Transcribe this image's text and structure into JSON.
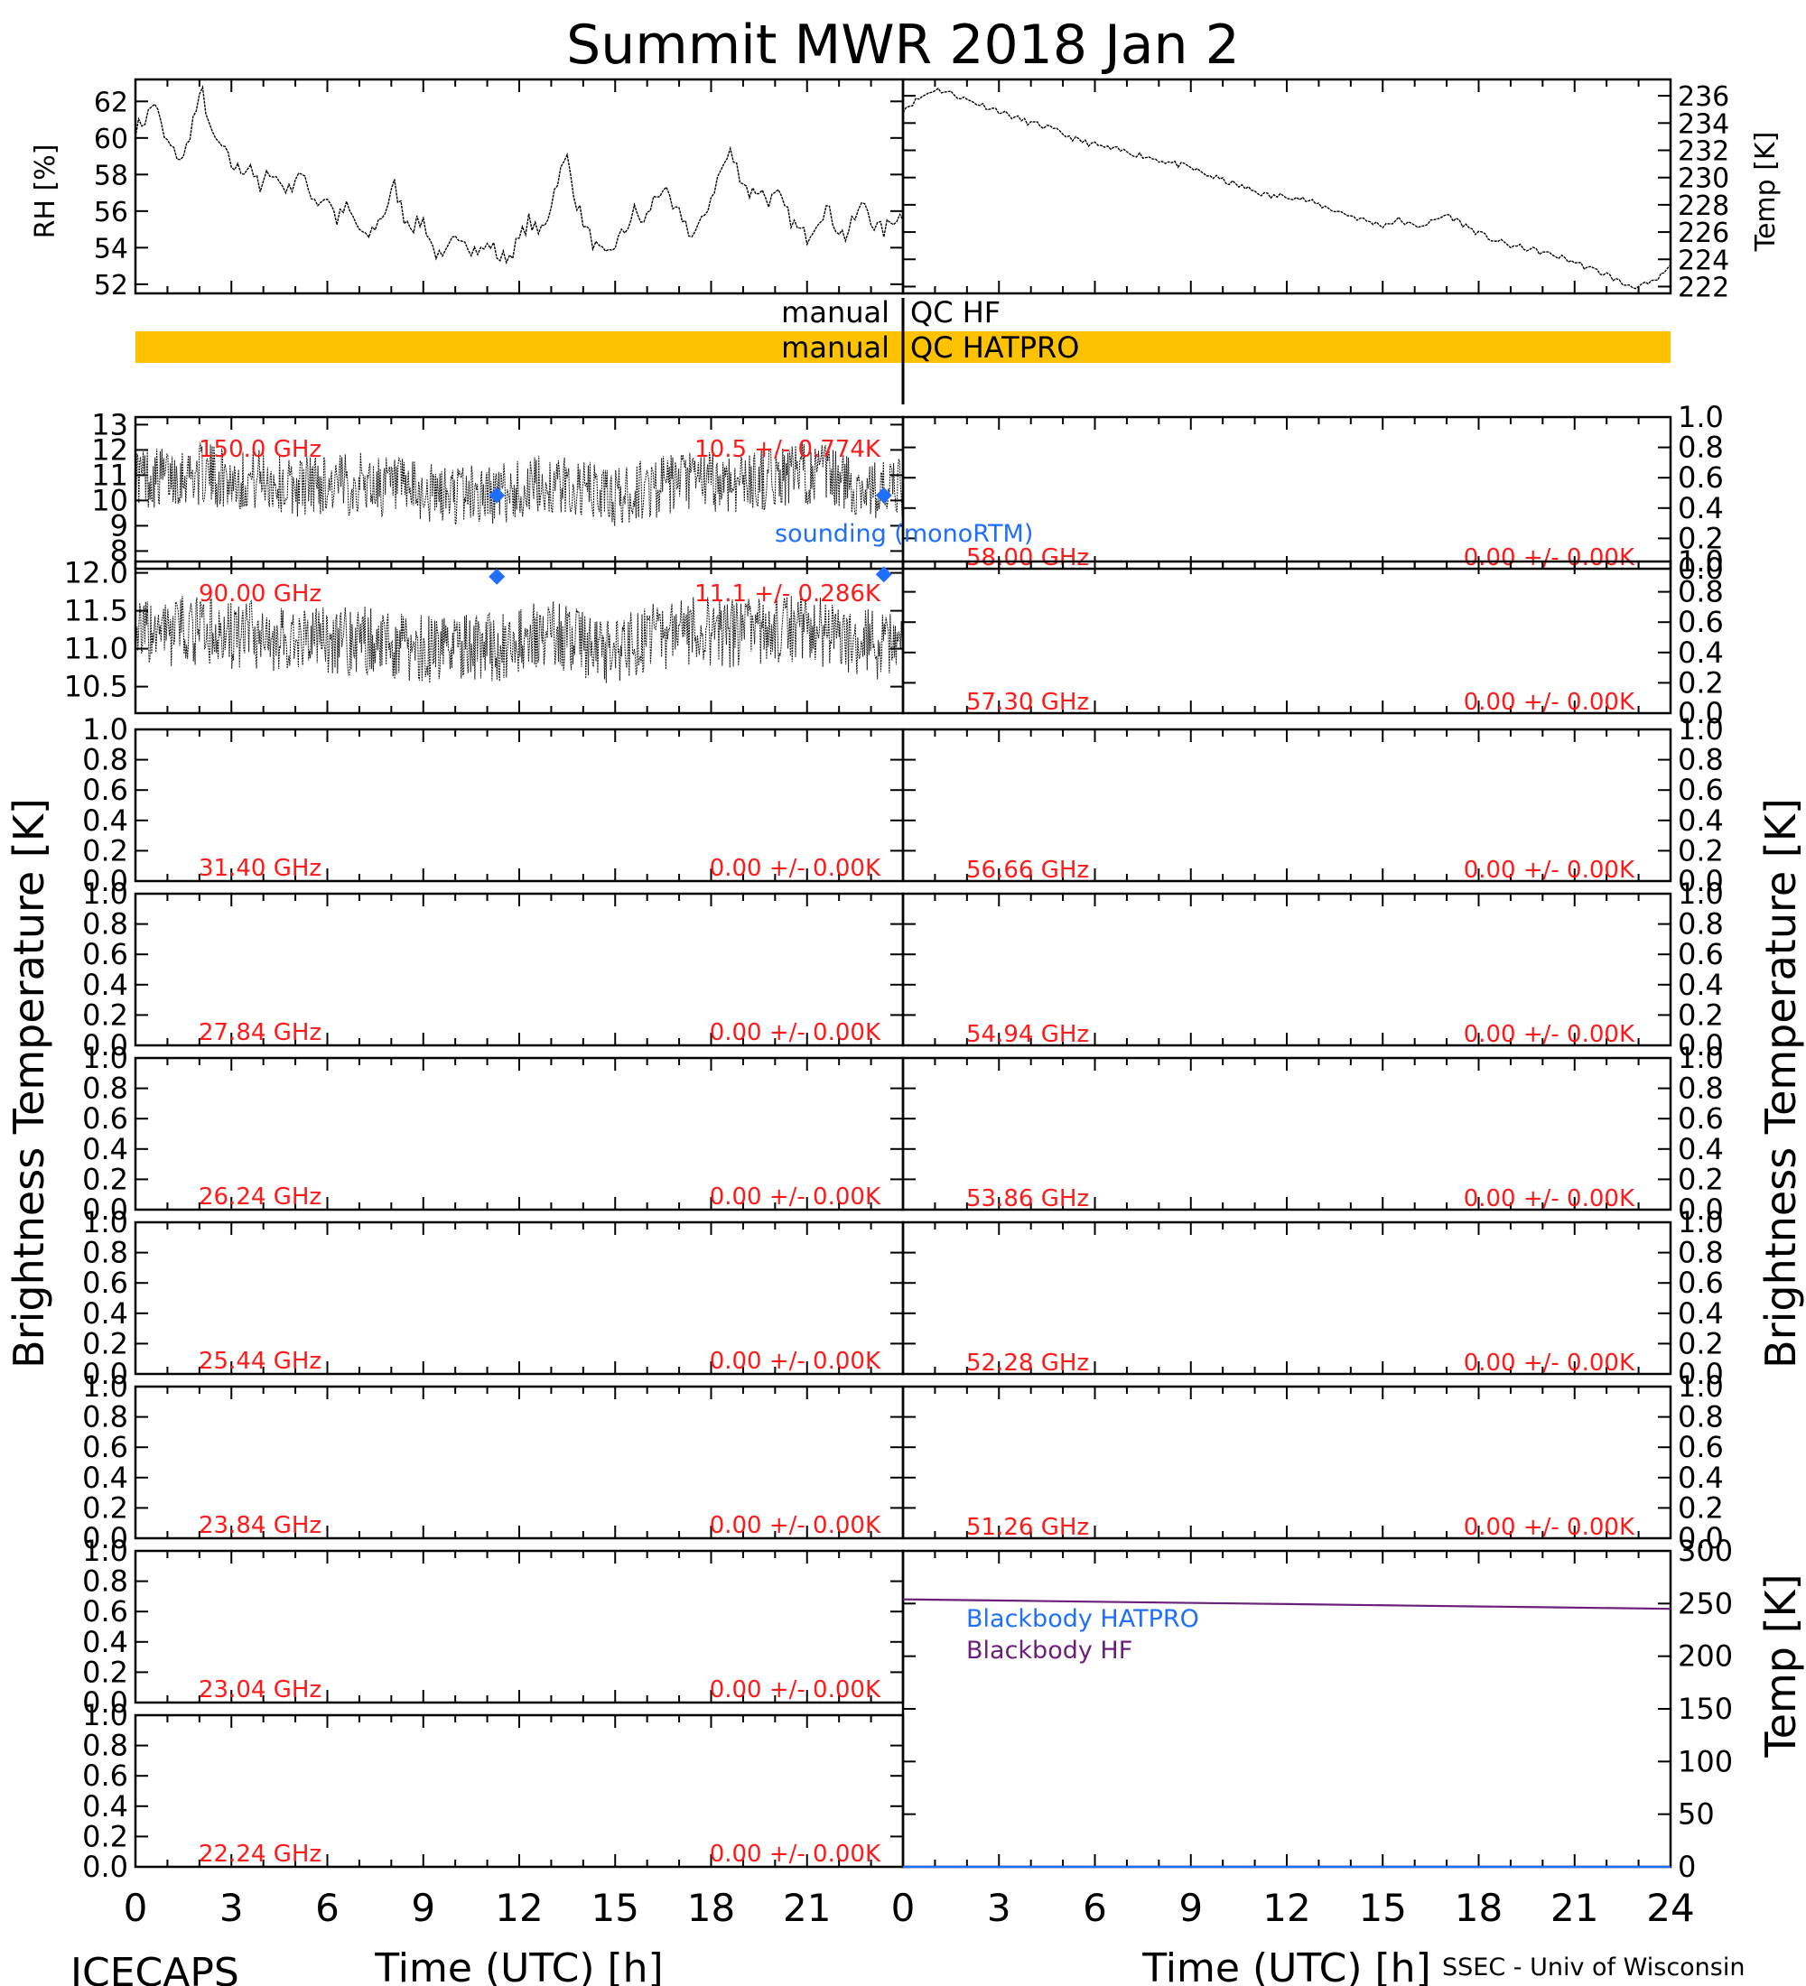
{
  "title": "Summit MWR 2018 Jan  2",
  "footer": {
    "left": "ICECAPS",
    "right": "SSEC - Univ of Wisconsin"
  },
  "colors": {
    "ink": "#000000",
    "label": "#ff1a1a",
    "sounding": "#1f6fff",
    "qc_bar": "#fcc200",
    "bb_hatpro": "#1f6fff",
    "bb_hf": "#6b1f7a"
  },
  "qc": {
    "hf_left": "manual",
    "hf_right": "QC HF",
    "hatpro_left": "manual",
    "hatpro_right": "QC HATPRO"
  },
  "legend": {
    "sounding": "sounding (monoRTM)",
    "bb_hatpro": "Blackbody HATPRO",
    "bb_hf": "Blackbody HF"
  },
  "axes": {
    "left_bt": "Brightness Temperature [K]",
    "right_bt": "Brightness Temperature [K]",
    "rh": "RH [%]",
    "temp_top": "Temp [K]",
    "temp_bb": "Temp [K]",
    "xlabel_left": "Time (UTC) [h]",
    "xlabel_right": "Time (UTC) [h]",
    "xticks": [
      "0",
      "3",
      "6",
      "9",
      "12",
      "15",
      "18",
      "21",
      "24"
    ],
    "xticks_left_shown": [
      "0",
      "3",
      "6",
      "9",
      "12",
      "15",
      "18",
      "21"
    ]
  },
  "chart_data": [
    {
      "id": "rh",
      "type": "line",
      "ylabel": "RH [%]",
      "ylim": [
        51.5,
        63.2
      ],
      "yticks": [
        "52",
        "54",
        "56",
        "58",
        "60",
        "62"
      ],
      "xlim": [
        0,
        24
      ],
      "x": [
        0,
        0.3,
        0.6,
        0.9,
        1.2,
        1.5,
        1.8,
        2.1,
        2.4,
        2.7,
        3.0,
        3.3,
        3.6,
        3.9,
        4.2,
        4.5,
        4.8,
        5.1,
        5.4,
        5.7,
        6.0,
        6.3,
        6.6,
        6.9,
        7.2,
        7.5,
        7.8,
        8.1,
        8.4,
        8.7,
        9.0,
        9.3,
        9.6,
        9.9,
        10.2,
        10.5,
        10.8,
        11.1,
        11.4,
        11.7,
        12.0,
        12.3,
        12.6,
        12.9,
        13.2,
        13.5,
        13.8,
        14.1,
        14.4,
        14.7,
        15.0,
        15.3,
        15.6,
        15.9,
        16.2,
        16.5,
        16.8,
        17.1,
        17.4,
        17.7,
        18.0,
        18.3,
        18.6,
        18.9,
        19.2,
        19.5,
        19.8,
        20.1,
        20.4,
        20.7,
        21.0,
        21.3,
        21.6,
        21.9,
        22.2,
        22.5,
        22.8,
        23.1,
        23.4,
        23.7,
        24.0
      ],
      "values": [
        60.5,
        61.0,
        62.0,
        60.0,
        59.2,
        58.8,
        61.0,
        62.5,
        60.0,
        59.5,
        58.5,
        58.2,
        58.6,
        57.0,
        58.3,
        57.6,
        57.1,
        58.2,
        57.2,
        56.5,
        56.8,
        55.5,
        56.2,
        55.3,
        54.4,
        55.2,
        56.0,
        57.4,
        55.7,
        55.2,
        55.5,
        54.0,
        53.2,
        54.2,
        54.8,
        54.0,
        53.8,
        54.2,
        53.4,
        53.6,
        54.4,
        55.5,
        54.7,
        55.8,
        57.8,
        58.9,
        56.4,
        55.0,
        54.0,
        53.4,
        54.2,
        54.9,
        56.0,
        55.3,
        56.6,
        57.3,
        56.0,
        55.7,
        54.6,
        55.3,
        56.8,
        58.2,
        59.2,
        58.0,
        57.0,
        57.2,
        56.6,
        56.8,
        55.8,
        55.0,
        54.6,
        55.5,
        56.2,
        55.2,
        54.6,
        55.6,
        56.5,
        55.2,
        54.9,
        55.6,
        55.8
      ]
    },
    {
      "id": "temp",
      "type": "line",
      "ylabel": "Temp [K]",
      "ylim": [
        221.5,
        237.2
      ],
      "yticks": [
        "222",
        "224",
        "226",
        "228",
        "230",
        "232",
        "234",
        "236"
      ],
      "xlim": [
        0,
        24
      ],
      "x": [
        0,
        0.5,
        1.0,
        1.5,
        2.0,
        2.5,
        3.0,
        3.5,
        4.0,
        4.5,
        5.0,
        5.5,
        6.0,
        6.5,
        7.0,
        7.5,
        8.0,
        8.5,
        9.0,
        9.5,
        10.0,
        10.5,
        11.0,
        11.5,
        12.0,
        12.5,
        13.0,
        13.5,
        14.0,
        14.5,
        15.0,
        15.5,
        16.0,
        16.5,
        17.0,
        17.5,
        18.0,
        18.5,
        19.0,
        19.5,
        20.0,
        20.5,
        21.0,
        21.5,
        22.0,
        22.5,
        23.0,
        23.5,
        24.0
      ],
      "values": [
        235.0,
        235.8,
        236.5,
        236.2,
        235.7,
        235.3,
        234.9,
        234.4,
        234.0,
        233.7,
        233.2,
        232.7,
        232.4,
        232.1,
        231.9,
        231.6,
        231.3,
        231.0,
        230.7,
        230.2,
        229.8,
        229.4,
        229.0,
        228.6,
        228.7,
        228.4,
        228.0,
        227.6,
        227.2,
        226.8,
        226.5,
        226.9,
        226.4,
        226.7,
        227.3,
        226.6,
        225.9,
        225.4,
        225.0,
        224.8,
        224.5,
        224.2,
        223.8,
        223.3,
        222.9,
        222.2,
        222.0,
        222.3,
        223.5
      ]
    },
    {
      "id": "ch150",
      "type": "line",
      "channel": "150.0 GHz",
      "stat": "10.5 +/- 0.774K",
      "ylim": [
        7.3,
        13.3
      ],
      "yticks": [
        "8",
        "9",
        "10",
        "11",
        "12",
        "13"
      ],
      "xlim": [
        0,
        24
      ],
      "mean": 10.5,
      "std": 0.774,
      "sounding": [
        [
          11.3,
          10.2
        ],
        [
          23.4,
          10.2
        ]
      ],
      "x": [
        0,
        0.8,
        1.6,
        2.4,
        3.2,
        4.0,
        4.8,
        5.6,
        6.4,
        7.2,
        8.0,
        8.8,
        9.6,
        10.4,
        11.2,
        12.0,
        12.8,
        13.6,
        14.4,
        15.2,
        16.0,
        16.8,
        17.6,
        18.4,
        19.2,
        20.0,
        20.8,
        21.6,
        22.4,
        23.2,
        24.0
      ],
      "values": [
        11.0,
        10.9,
        11.1,
        11.0,
        10.8,
        10.9,
        10.5,
        10.7,
        10.6,
        10.7,
        10.5,
        10.3,
        10.2,
        10.3,
        10.2,
        10.4,
        10.6,
        10.5,
        10.3,
        10.1,
        10.5,
        10.6,
        10.8,
        10.7,
        10.8,
        10.9,
        11.1,
        11.0,
        10.6,
        10.4,
        10.4
      ]
    },
    {
      "id": "ch90",
      "type": "line",
      "channel": "90.00 GHz",
      "stat": "11.1 +/- 0.286K",
      "ylim": [
        10.15,
        12.15
      ],
      "yticks": [
        "10.5",
        "11.0",
        "11.5",
        "12.0"
      ],
      "xlim": [
        0,
        24
      ],
      "mean": 11.1,
      "std": 0.286,
      "sounding": [
        [
          11.3,
          11.95
        ],
        [
          23.4,
          11.98
        ]
      ],
      "x": [
        0,
        0.8,
        1.6,
        2.4,
        3.2,
        4.0,
        4.8,
        5.6,
        6.4,
        7.2,
        8.0,
        8.8,
        9.6,
        10.4,
        11.2,
        12.0,
        12.8,
        13.6,
        14.4,
        15.2,
        16.0,
        16.8,
        17.6,
        18.4,
        19.2,
        20.0,
        20.8,
        21.6,
        22.4,
        23.2,
        24.0
      ],
      "values": [
        11.2,
        11.2,
        11.25,
        11.2,
        11.15,
        11.2,
        11.1,
        11.15,
        11.1,
        11.1,
        11.05,
        11.0,
        11.0,
        11.05,
        11.0,
        11.1,
        11.2,
        11.1,
        11.0,
        11.0,
        11.15,
        11.2,
        11.25,
        11.2,
        11.2,
        11.25,
        11.3,
        11.2,
        11.1,
        11.05,
        11.1
      ]
    },
    {
      "id": "c58",
      "type": "line",
      "channel": "58.00 GHz",
      "stat": "0.00 +/- 0.00K",
      "ylim": [
        0,
        1
      ],
      "yticks": [
        "0.0",
        "0.2",
        "0.4",
        "0.6",
        "0.8",
        "1.0"
      ],
      "values": []
    },
    {
      "id": "c57",
      "type": "line",
      "channel": "57.30 GHz",
      "stat": "0.00 +/- 0.00K",
      "ylim": [
        0,
        1
      ],
      "yticks": [
        "0.0",
        "0.2",
        "0.4",
        "0.6",
        "0.8",
        "1.0"
      ],
      "values": []
    },
    {
      "id": "c31",
      "type": "line",
      "channel": "31.40 GHz",
      "stat": "0.00 +/- 0.00K",
      "ylim": [
        0,
        1
      ],
      "yticks": [
        "0.0",
        "0.2",
        "0.4",
        "0.6",
        "0.8",
        "1.0"
      ],
      "values": []
    },
    {
      "id": "c56",
      "type": "line",
      "channel": "56.66 GHz",
      "stat": "0.00 +/- 0.00K",
      "ylim": [
        0,
        1
      ],
      "yticks": [
        "0.0",
        "0.2",
        "0.4",
        "0.6",
        "0.8",
        "1.0"
      ],
      "values": []
    },
    {
      "id": "c27",
      "type": "line",
      "channel": "27.84 GHz",
      "stat": "0.00 +/- 0.00K",
      "ylim": [
        0,
        1
      ],
      "yticks": [
        "0.0",
        "0.2",
        "0.4",
        "0.6",
        "0.8",
        "1.0"
      ],
      "values": []
    },
    {
      "id": "c54",
      "type": "line",
      "channel": "54.94 GHz",
      "stat": "0.00 +/- 0.00K",
      "ylim": [
        0,
        1
      ],
      "yticks": [
        "0.0",
        "0.2",
        "0.4",
        "0.6",
        "0.8",
        "1.0"
      ],
      "values": []
    },
    {
      "id": "c26",
      "type": "line",
      "channel": "26.24 GHz",
      "stat": "0.00 +/- 0.00K",
      "ylim": [
        0,
        1
      ],
      "yticks": [
        "0.0",
        "0.2",
        "0.4",
        "0.6",
        "0.8",
        "1.0"
      ],
      "values": []
    },
    {
      "id": "c53",
      "type": "line",
      "channel": "53.86 GHz",
      "stat": "0.00 +/- 0.00K",
      "ylim": [
        0,
        1
      ],
      "yticks": [
        "0.0",
        "0.2",
        "0.4",
        "0.6",
        "0.8",
        "1.0"
      ],
      "values": []
    },
    {
      "id": "c25",
      "type": "line",
      "channel": "25.44 GHz",
      "stat": "0.00 +/- 0.00K",
      "ylim": [
        0,
        1
      ],
      "yticks": [
        "0.0",
        "0.2",
        "0.4",
        "0.6",
        "0.8",
        "1.0"
      ],
      "values": []
    },
    {
      "id": "c52",
      "type": "line",
      "channel": "52.28 GHz",
      "stat": "0.00 +/- 0.00K",
      "ylim": [
        0,
        1
      ],
      "yticks": [
        "0.0",
        "0.2",
        "0.4",
        "0.6",
        "0.8",
        "1.0"
      ],
      "values": []
    },
    {
      "id": "c23a",
      "type": "line",
      "channel": "23.84 GHz",
      "stat": "0.00 +/- 0.00K",
      "ylim": [
        0,
        1
      ],
      "yticks": [
        "0.0",
        "0.2",
        "0.4",
        "0.6",
        "0.8",
        "1.0"
      ],
      "values": []
    },
    {
      "id": "c51",
      "type": "line",
      "channel": "51.26 GHz",
      "stat": "0.00 +/- 0.00K",
      "ylim": [
        0,
        1
      ],
      "yticks": [
        "0.0",
        "0.2",
        "0.4",
        "0.6",
        "0.8",
        "1.0"
      ],
      "values": []
    },
    {
      "id": "c23b",
      "type": "line",
      "channel": "23.04 GHz",
      "stat": "0.00 +/- 0.00K",
      "ylim": [
        0,
        1
      ],
      "yticks": [
        "0.0",
        "0.2",
        "0.4",
        "0.6",
        "0.8",
        "1.0"
      ],
      "values": []
    },
    {
      "id": "c22",
      "type": "line",
      "channel": "22.24 GHz",
      "stat": "0.00 +/- 0.00K",
      "ylim": [
        0,
        1
      ],
      "yticks": [
        "0.0",
        "0.2",
        "0.4",
        "0.6",
        "0.8",
        "1.0"
      ],
      "values": []
    },
    {
      "id": "bb",
      "type": "line",
      "ylabel": "Temp [K]",
      "ylim": [
        0,
        300
      ],
      "yticks": [
        "0",
        "50",
        "100",
        "150",
        "200",
        "250",
        "300"
      ],
      "xlim": [
        0,
        24
      ],
      "series": [
        {
          "name": "Blackbody HATPRO",
          "x": [
            0,
            24
          ],
          "values": [
            0,
            0
          ]
        },
        {
          "name": "Blackbody HF",
          "x": [
            0,
            4,
            8,
            12,
            16,
            20,
            24
          ],
          "values": [
            254.0,
            252.5,
            251.0,
            249.5,
            248.0,
            246.5,
            245.0
          ]
        }
      ]
    }
  ]
}
